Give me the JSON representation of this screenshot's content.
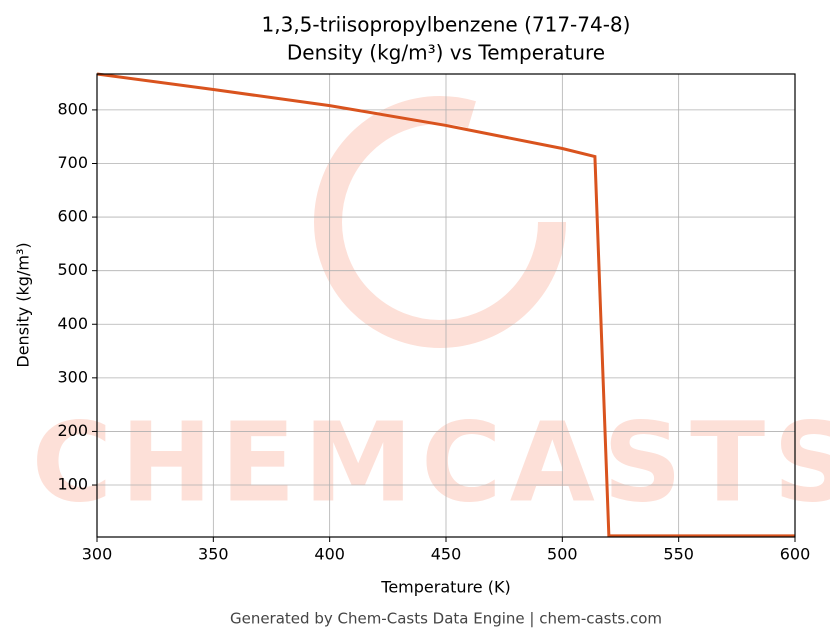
{
  "chart_data": {
    "type": "line",
    "title": "1,3,5-triisopropylbenzene (717-74-8)",
    "subtitle": "Density (kg/m³) vs Temperature",
    "x_label": "Temperature (K)",
    "y_label": "Density (kg/m³)",
    "watermark": "CHEMCASTS",
    "footer": "Generated by Chem-Casts Data Engine | chem-casts.com",
    "x": [
      300,
      350,
      400,
      450,
      500,
      514,
      520,
      600
    ],
    "series": [
      {
        "name": "Density",
        "color": "#d9531e",
        "values": [
          867,
          838,
          808,
          771,
          728,
          713,
          5,
          5
        ]
      }
    ],
    "xlim": [
      300,
      600
    ],
    "xticks": [
      300,
      350,
      400,
      450,
      500,
      550,
      600
    ],
    "ylim": [
      3,
      867
    ],
    "yticks": [
      100,
      200,
      300,
      400,
      500,
      600,
      700,
      800
    ],
    "grid": true
  }
}
